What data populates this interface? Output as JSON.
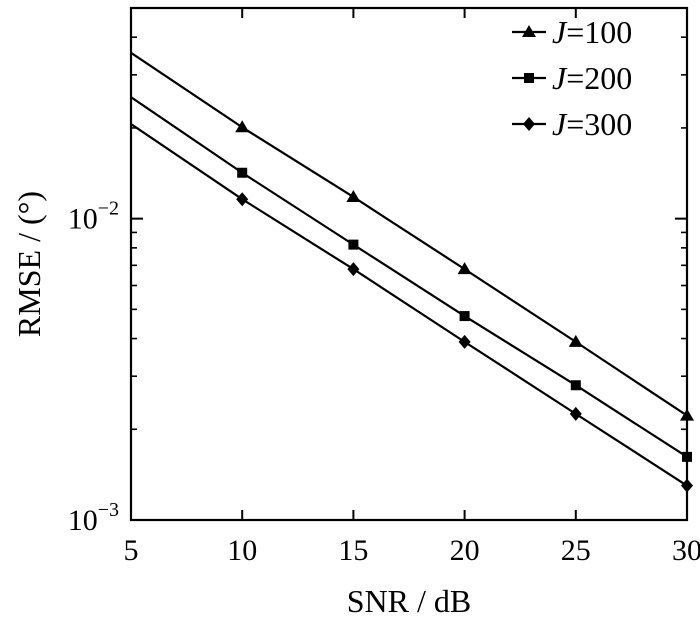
{
  "chart_data": {
    "type": "line",
    "xlabel": "SNR / dB",
    "ylabel": "RMSE / (°)",
    "xlim": [
      5,
      30
    ],
    "ylim": [
      0.001,
      0.05
    ],
    "yscale": "log",
    "x_ticks": [
      {
        "value": 5,
        "label": "5"
      },
      {
        "value": 10,
        "label": "10"
      },
      {
        "value": 15,
        "label": "15"
      },
      {
        "value": 20,
        "label": "20"
      },
      {
        "value": 25,
        "label": "25"
      },
      {
        "value": 30,
        "label": "30"
      }
    ],
    "y_ticks": [
      {
        "value": 0.01,
        "base": "10",
        "exp": "−2"
      },
      {
        "value": 0.001,
        "base": "10",
        "exp": "−3"
      }
    ],
    "grid": false,
    "legend_position": "top-right",
    "series": [
      {
        "name_prefix": "J",
        "name_suffix": "=100",
        "marker": "triangle",
        "x": [
          5,
          10,
          15,
          20,
          25,
          30
        ],
        "y": [
          0.0355,
          0.0201,
          0.0118,
          0.0068,
          0.0039,
          0.00222
        ]
      },
      {
        "name_prefix": "J",
        "name_suffix": "=200",
        "marker": "square",
        "x": [
          5,
          10,
          15,
          20,
          25,
          30
        ],
        "y": [
          0.0253,
          0.0142,
          0.0082,
          0.00475,
          0.0028,
          0.00162
        ]
      },
      {
        "name_prefix": "J",
        "name_suffix": "=300",
        "marker": "diamond",
        "x": [
          5,
          10,
          15,
          20,
          25,
          30
        ],
        "y": [
          0.0206,
          0.0116,
          0.0068,
          0.0039,
          0.00225,
          0.0013
        ]
      }
    ]
  }
}
